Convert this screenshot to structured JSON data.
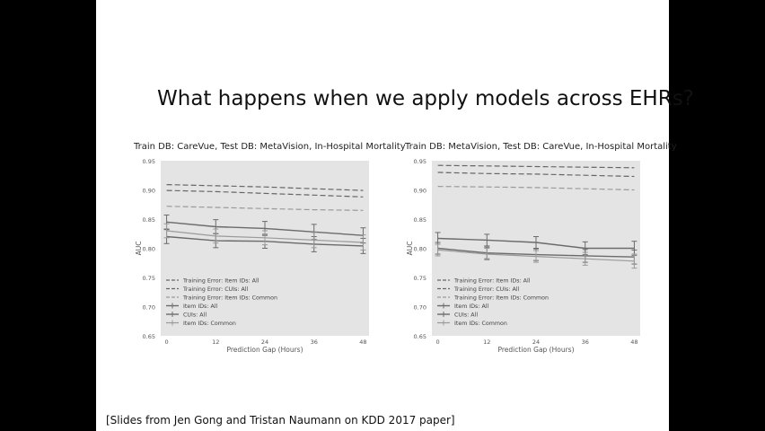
{
  "slide": {
    "title": "What happens when we apply models across EHRs?",
    "citation": "[Slides from Jen Gong and Tristan Naumann on KDD 2017 paper]"
  },
  "chart_data": [
    {
      "type": "line",
      "title": "Train DB: CareVue, Test DB: MetaVision, In-Hospital Mortality",
      "xlabel": "Prediction Gap (Hours)",
      "ylabel": "AUC",
      "x": [
        0,
        12,
        24,
        36,
        48
      ],
      "ylim": [
        0.65,
        0.95
      ],
      "yticks": [
        "0.65",
        "0.70",
        "0.75",
        "0.80",
        "0.85",
        "0.90",
        "0.95"
      ],
      "xticks": [
        "0",
        "12",
        "24",
        "36",
        "48"
      ],
      "grid": false,
      "legend_position": "bottom-left",
      "series": [
        {
          "name": "Training Error: Item IDs: All",
          "style": "dashed",
          "values": [
            0.909,
            0.907,
            0.905,
            0.902,
            0.899
          ]
        },
        {
          "name": "Training Error: CUIs: All",
          "style": "dashed",
          "values": [
            0.899,
            0.897,
            0.894,
            0.891,
            0.888
          ]
        },
        {
          "name": "Training Error: Item IDs: Common",
          "style": "dashed-light",
          "values": [
            0.872,
            0.87,
            0.868,
            0.866,
            0.865
          ]
        },
        {
          "name": "Item IDs: All",
          "style": "errorbar",
          "values": [
            0.845,
            0.837,
            0.834,
            0.828,
            0.822
          ],
          "err": [
            0.012,
            0.012,
            0.012,
            0.013,
            0.013
          ]
        },
        {
          "name": "CUIs: All",
          "style": "errorbar",
          "values": [
            0.82,
            0.813,
            0.812,
            0.807,
            0.804
          ],
          "err": [
            0.012,
            0.012,
            0.012,
            0.013,
            0.013
          ]
        },
        {
          "name": "Item IDs: Common",
          "style": "errorbar-light",
          "values": [
            0.83,
            0.821,
            0.818,
            0.814,
            0.81
          ],
          "err": [
            0.012,
            0.012,
            0.012,
            0.013,
            0.013
          ]
        }
      ]
    },
    {
      "type": "line",
      "title": "Train DB: MetaVision, Test DB: CareVue, In-Hospital Mortality",
      "xlabel": "Prediction Gap (Hours)",
      "ylabel": "AUC",
      "x": [
        0,
        12,
        24,
        36,
        48
      ],
      "ylim": [
        0.65,
        0.95
      ],
      "yticks": [
        "0.65",
        "0.70",
        "0.75",
        "0.80",
        "0.85",
        "0.90",
        "0.95"
      ],
      "xticks": [
        "0",
        "12",
        "24",
        "36",
        "48"
      ],
      "grid": false,
      "legend_position": "bottom-left",
      "series": [
        {
          "name": "Training Error: Item IDs: All",
          "style": "dashed",
          "values": [
            0.942,
            0.941,
            0.94,
            0.939,
            0.938
          ]
        },
        {
          "name": "Training Error: CUIs: All",
          "style": "dashed",
          "values": [
            0.93,
            0.928,
            0.927,
            0.925,
            0.923
          ]
        },
        {
          "name": "Training Error: Item IDs: Common",
          "style": "dashed-light",
          "values": [
            0.906,
            0.905,
            0.904,
            0.902,
            0.9
          ]
        },
        {
          "name": "Item IDs: All",
          "style": "errorbar",
          "values": [
            0.817,
            0.814,
            0.81,
            0.8,
            0.8
          ],
          "err": [
            0.01,
            0.01,
            0.01,
            0.011,
            0.012
          ]
        },
        {
          "name": "CUIs: All",
          "style": "errorbar",
          "values": [
            0.8,
            0.792,
            0.789,
            0.787,
            0.785
          ],
          "err": [
            0.01,
            0.01,
            0.01,
            0.011,
            0.012
          ]
        },
        {
          "name": "Item IDs: Common",
          "style": "errorbar-light",
          "values": [
            0.797,
            0.79,
            0.786,
            0.782,
            0.778
          ],
          "err": [
            0.01,
            0.01,
            0.01,
            0.011,
            0.012
          ]
        }
      ]
    }
  ]
}
